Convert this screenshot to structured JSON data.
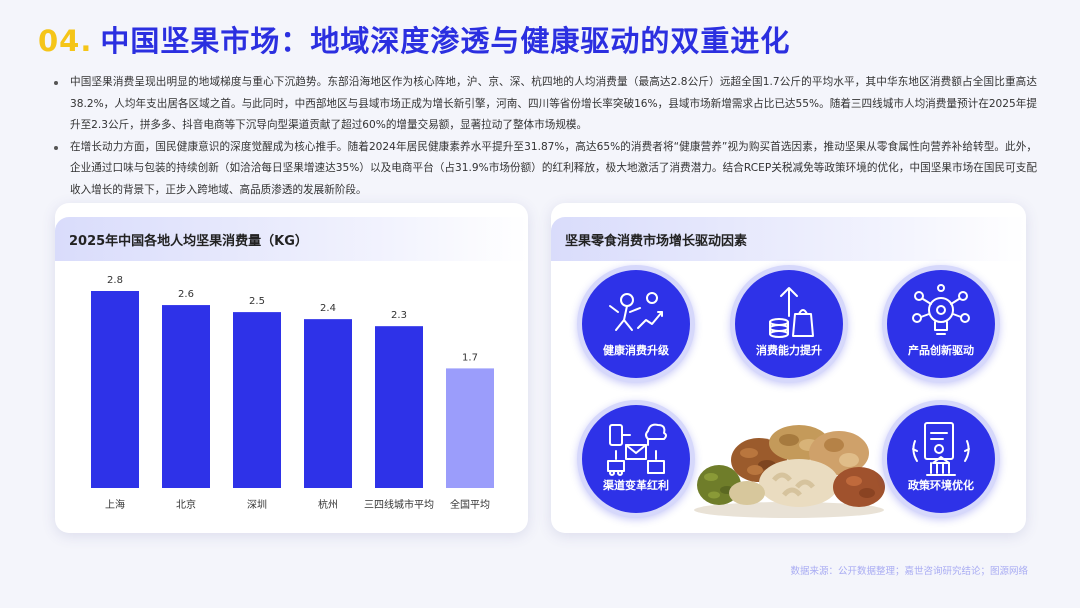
{
  "header": {
    "number": "04.",
    "title": "中国坚果市场：地域深度渗透与健康驱动的双重进化"
  },
  "bullets": [
    "中国坚果消费呈现出明显的地域梯度与重心下沉趋势。东部沿海地区作为核心阵地，沪、京、深、杭四地的人均消费量（最高达2.8公斤）远超全国1.7公斤的平均水平，其中华东地区消费额占全国比重高达38.2%，人均年支出居各区域之首。与此同时，中西部地区与县域市场正成为增长新引擎，河南、四川等省份增长率突破16%，县域市场新增需求占比已达55%。随着三四线城市人均消费量预计在2025年提升至2.3公斤，拼多多、抖音电商等下沉导向型渠道贡献了超过60%的增量交易额，显著拉动了整体市场规模。",
    "在增长动力方面，国民健康意识的深度觉醒成为核心推手。随着2024年居民健康素养水平提升至31.87%，高达65%的消费者将“健康营养”视为购买首选因素，推动坚果从零食属性向营养补给转型。此外，企业通过口味与包装的持续创新（如洽洽每日坚果增速达35%）以及电商平台（占31.9%市场份额）的红利释放，极大地激活了消费潜力。结合RCEP关税减免等政策环境的优化，中国坚果市场在国民可支配收入增长的背景下，正步入跨地域、高品质渗透的发展新阶段。"
  ],
  "left_card": {
    "title": "2025年中国各地人均坚果消费量（KG）"
  },
  "right_card": {
    "title": "坚果零食消费市场增长驱动因素",
    "drivers": [
      {
        "label": "健康消费升级",
        "icon": "health-growth-icon"
      },
      {
        "label": "消费能力提升",
        "icon": "coins-rising-icon"
      },
      {
        "label": "产品创新驱动",
        "icon": "lightbulb-icon"
      },
      {
        "label": "渠道变革红利",
        "icon": "channel-network-icon"
      },
      {
        "label": "政策环境优化",
        "icon": "policy-document-icon"
      }
    ]
  },
  "source": "数据来源：公开数据整理；嘉世咨询研究结论；图源网络",
  "colors": {
    "primary": "#2e32e8",
    "accent": "#f5c518",
    "light_bar": "#9b9dfb"
  },
  "chart_data": {
    "type": "bar",
    "title": "2025年中国各地人均坚果消费量（KG）",
    "categories": [
      "上海",
      "北京",
      "深圳",
      "杭州",
      "三四线城市平均",
      "全国平均"
    ],
    "values": [
      2.8,
      2.6,
      2.5,
      2.4,
      2.3,
      1.7
    ],
    "highlight_last": true,
    "ylim": [
      0,
      3.0
    ],
    "grid": false,
    "xlabel": "",
    "ylabel": ""
  }
}
